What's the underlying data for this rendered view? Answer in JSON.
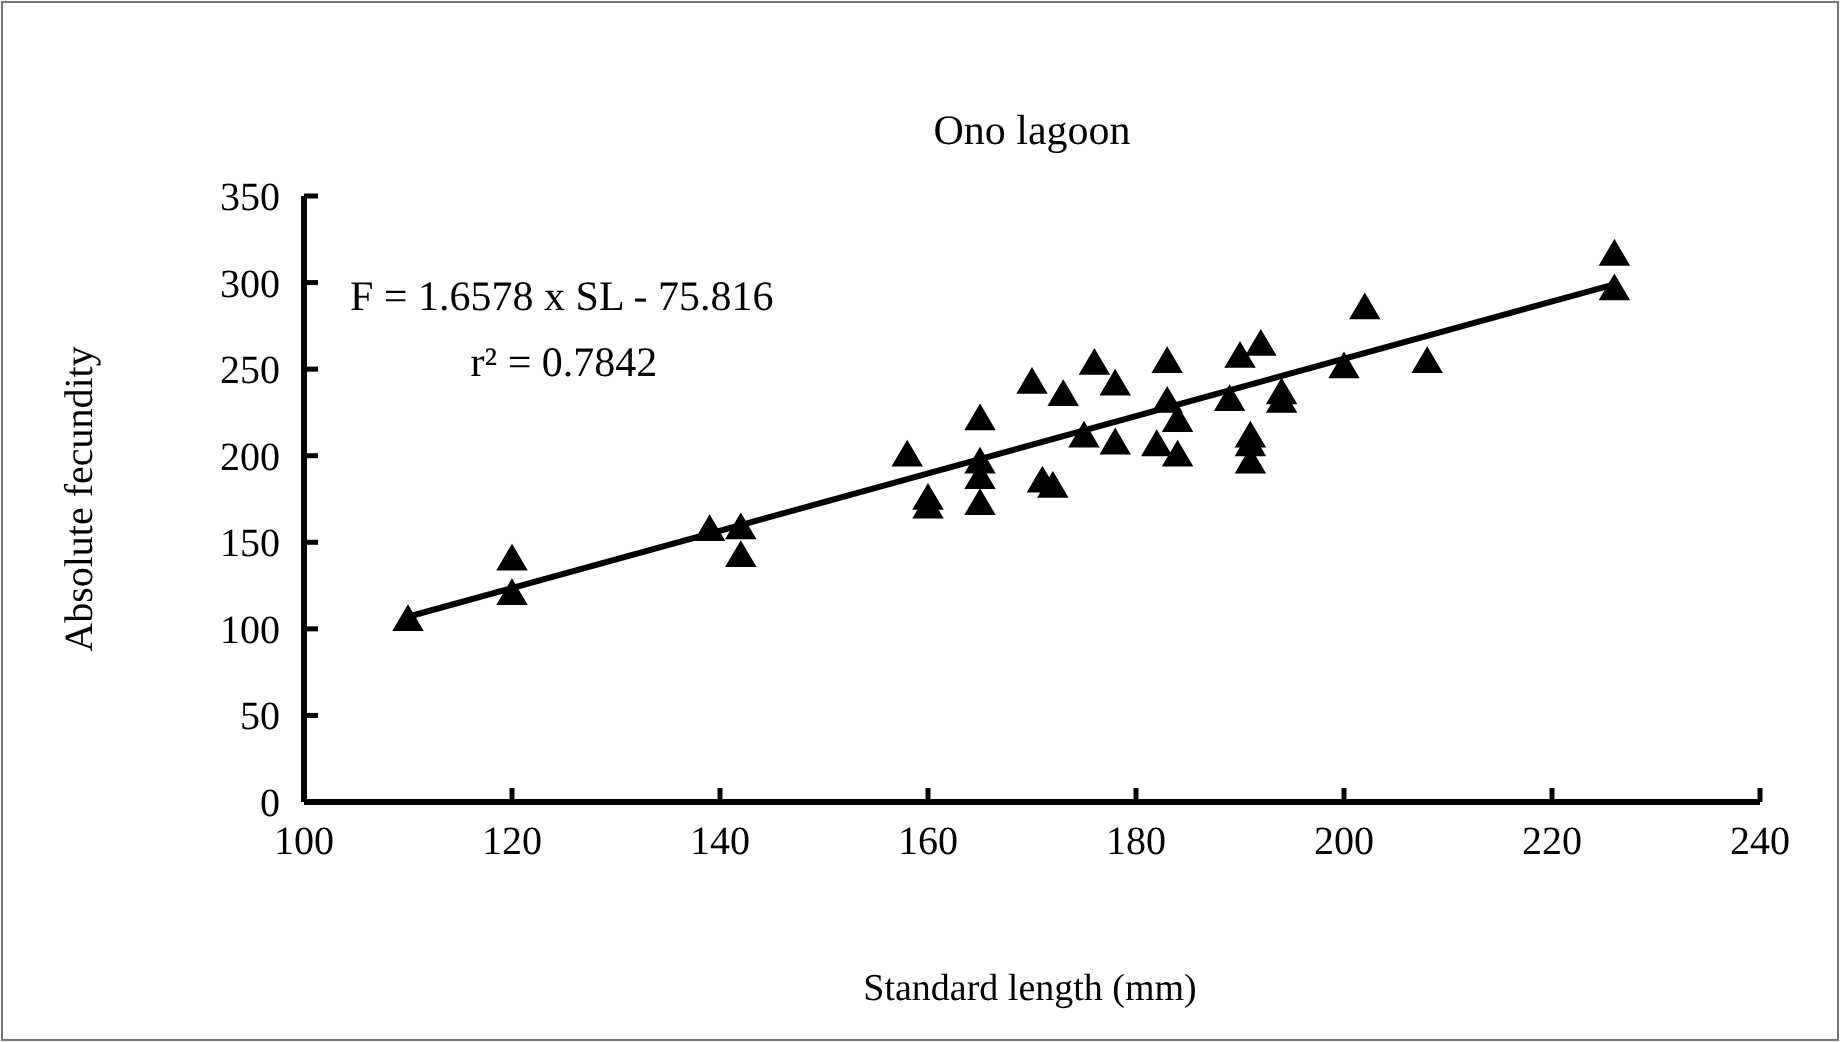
{
  "chart_data": {
    "type": "scatter",
    "title": "Ono lagoon",
    "xlabel": "Standard length (mm)",
    "ylabel": "Absolute fecundity",
    "annotations": [
      "F = 1.6578 x SL - 75.816",
      "r² = 0.7842"
    ],
    "xlim": [
      100,
      240
    ],
    "xticks": [
      100,
      120,
      140,
      160,
      180,
      200,
      220,
      240
    ],
    "ylim": [
      0,
      350
    ],
    "yticks": [
      0,
      50,
      100,
      150,
      200,
      250,
      300,
      350
    ],
    "grid": false,
    "series": [
      {
        "marker": "triangle",
        "color": "#000000",
        "x": [
          110,
          120,
          120,
          139,
          142,
          142,
          158,
          160,
          160,
          165,
          165,
          165,
          165,
          170,
          173,
          176,
          178,
          183,
          190,
          192,
          202,
          226,
          226,
          208,
          200,
          194,
          194,
          189,
          183,
          184,
          175,
          178,
          182,
          184,
          191,
          191,
          191,
          171,
          172
        ],
        "values": [
          105,
          140,
          120,
          157,
          158,
          142,
          200,
          175,
          170,
          221,
          196,
          187,
          172,
          242,
          235,
          253,
          241,
          254,
          257,
          264,
          285,
          316,
          296,
          254,
          251,
          236,
          231,
          232,
          231,
          220,
          211,
          207,
          206,
          200,
          211,
          206,
          196,
          185,
          182
        ]
      },
      {
        "type": "line",
        "color": "#000000",
        "x": [
          110,
          226
        ],
        "values": [
          107,
          299
        ]
      }
    ]
  }
}
